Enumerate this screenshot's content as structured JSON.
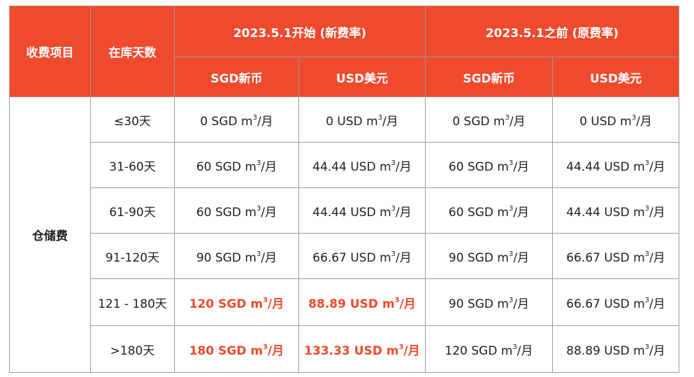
{
  "header": {
    "item": "收费项目",
    "days": "在库天数",
    "new_group": "2023.5.1开始 (新费率)",
    "old_group": "2023.5.1之前 (原费率)",
    "new_sgd": "SGD新币",
    "new_usd": "USD美元",
    "old_sgd": "SGD新币",
    "old_usd": "USD美元"
  },
  "category": "仓储费",
  "unit_suffix": "/月",
  "unit_sup": "3",
  "rows": [
    {
      "days": "≤30天",
      "new_sgd": "0 SGD m",
      "new_usd": "0 USD m",
      "old_sgd": "0 SGD m",
      "old_usd": "0 USD m",
      "highlight": false
    },
    {
      "days": "31-60天",
      "new_sgd": "60 SGD m",
      "new_usd": "44.44 USD m",
      "old_sgd": "60 SGD m",
      "old_usd": "44.44 USD m",
      "highlight": false
    },
    {
      "days": "61-90天",
      "new_sgd": "60 SGD m",
      "new_usd": "44.44 USD m",
      "old_sgd": "60 SGD m",
      "old_usd": "44.44 USD m",
      "highlight": false
    },
    {
      "days": "91-120天",
      "new_sgd": "90 SGD m",
      "new_usd": "66.67 USD m",
      "old_sgd": "90 SGD m",
      "old_usd": "66.67 USD m",
      "highlight": false
    },
    {
      "days": "121 - 180天",
      "new_sgd": "120 SGD m",
      "new_usd": "88.89 USD m",
      "old_sgd": "90 SGD m",
      "old_usd": "66.67 USD m",
      "highlight": true
    },
    {
      "days": ">180天",
      "new_sgd": "180 SGD m",
      "new_usd": "133.33 USD m",
      "old_sgd": "120 SGD m",
      "old_usd": "88.89 USD m",
      "highlight": true
    }
  ],
  "colors": {
    "header_bg": "#f04a2e",
    "highlight_text": "#ef4a2c"
  }
}
